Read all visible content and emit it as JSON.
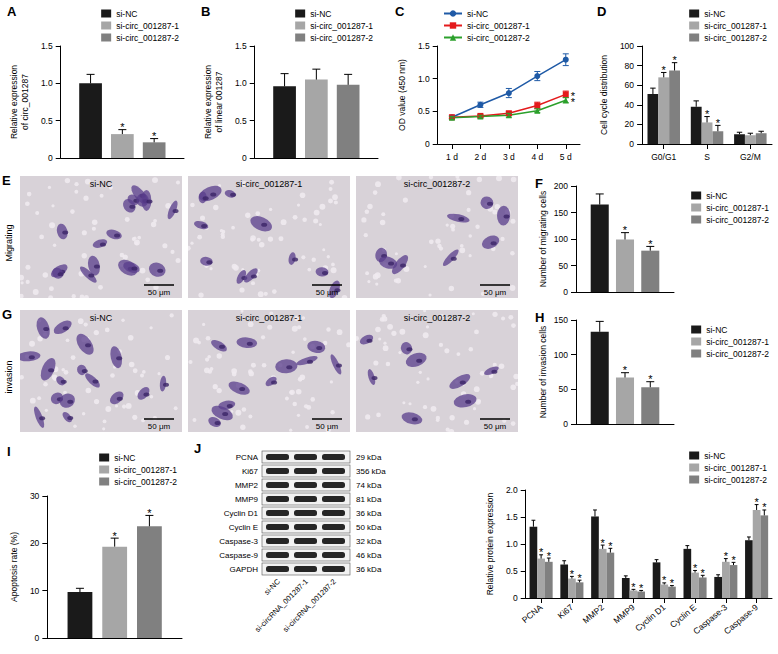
{
  "chart_data": [
    {
      "type": "bar",
      "title": "A",
      "categories": [
        null
      ],
      "ylabel": "Relative expression\nof circ_001287",
      "ylim": [
        0,
        1.5
      ],
      "yticks": [
        0,
        0.5,
        {
          "value": 1,
          "label": "1.0"
        },
        1.5
      ],
      "grid": false,
      "legend": "upper right",
      "tick_labels": "y",
      "series": [
        {
          "name": "si-NC",
          "color": "#1a1a1a",
          "values": [
            1.0
          ],
          "errors": [
            0.12
          ],
          "significance": [
            null
          ]
        },
        {
          "name": "si-circ_001287-1",
          "color": "#a6a6a6",
          "values": [
            0.32
          ],
          "errors": [
            0.06
          ],
          "significance": [
            "*"
          ]
        },
        {
          "name": "si-circ_001287-2",
          "color": "#808080",
          "values": [
            0.21
          ],
          "errors": [
            0.05
          ],
          "significance": [
            "*"
          ]
        }
      ]
    },
    {
      "type": "bar",
      "title": "B",
      "categories": [
        null
      ],
      "ylabel": "Relative expression\nof linear 001287",
      "ylim": [
        0,
        1.5
      ],
      "yticks": [
        0,
        0.5,
        {
          "value": 1,
          "label": "1.0"
        },
        1.5
      ],
      "grid": false,
      "legend": "upper right",
      "tick_labels": "y",
      "series": [
        {
          "name": "si-NC",
          "color": "#1a1a1a",
          "values": [
            0.96
          ],
          "errors": [
            0.17
          ],
          "significance": [
            null
          ]
        },
        {
          "name": "si-circ_001287-1",
          "color": "#a6a6a6",
          "values": [
            1.05
          ],
          "errors": [
            0.14
          ],
          "significance": [
            null
          ]
        },
        {
          "name": "si-circ_001287-2",
          "color": "#808080",
          "values": [
            0.98
          ],
          "errors": [
            0.14
          ],
          "significance": [
            null
          ]
        }
      ]
    },
    {
      "type": "line",
      "title": "C",
      "categories": [
        "1 d",
        "2 d",
        "3 d",
        "4 d",
        "5 d"
      ],
      "ylabel": "OD value (450 nm)",
      "ylim": [
        0,
        1.5
      ],
      "yticks": [
        0,
        0.5,
        {
          "value": 1,
          "label": "1.0"
        },
        1.5
      ],
      "grid": false,
      "legend": "upper left",
      "series": [
        {
          "name": "si-NC",
          "color": "#1f5aa6",
          "marker": "circle",
          "values": [
            0.41,
            0.6,
            0.78,
            1.04,
            1.29
          ],
          "errors": [
            0.02,
            0.04,
            0.07,
            0.07,
            0.09
          ],
          "significance": [
            null,
            null,
            null,
            null,
            null
          ]
        },
        {
          "name": "si-circ_001287-1",
          "color": "#e41a1c",
          "marker": "square",
          "values": [
            0.41,
            0.43,
            0.47,
            0.59,
            0.76
          ],
          "errors": [
            0.02,
            0.02,
            0.03,
            0.05,
            0.05
          ],
          "significance": [
            null,
            null,
            null,
            null,
            "*"
          ]
        },
        {
          "name": "si-circ_001287-2",
          "color": "#2ca02c",
          "marker": "triangle",
          "values": [
            0.4,
            0.42,
            0.44,
            0.51,
            0.67
          ],
          "errors": [
            0.02,
            0.02,
            0.03,
            0.03,
            0.04
          ],
          "significance": [
            null,
            null,
            null,
            null,
            "*"
          ]
        }
      ]
    },
    {
      "type": "bar",
      "title": "D",
      "categories": [
        "G0/G1",
        "S",
        "G2/M"
      ],
      "ylabel": "Cell cycle distribution",
      "ylim": [
        0,
        100
      ],
      "yticks": [
        0,
        20,
        40,
        60,
        80,
        100
      ],
      "grid": false,
      "legend": "upper right",
      "series": [
        {
          "name": "si-NC",
          "color": "#1a1a1a",
          "values": [
            51,
            38,
            10
          ],
          "errors": [
            6,
            6,
            2
          ],
          "significance": [
            null,
            null,
            null
          ]
        },
        {
          "name": "si-circ_001287-1",
          "color": "#a6a6a6",
          "values": [
            68,
            22,
            9
          ],
          "errors": [
            5,
            6,
            2
          ],
          "significance": [
            "*",
            "*",
            null
          ]
        },
        {
          "name": "si-circ_001287-2",
          "color": "#808080",
          "values": [
            75,
            13,
            11
          ],
          "errors": [
            8,
            6,
            2
          ],
          "significance": [
            "*",
            "*",
            null
          ]
        }
      ]
    },
    {
      "type": "bar",
      "title": "F",
      "categories": [
        null
      ],
      "ylabel": "Number of migrating cells",
      "ylim": [
        0,
        200
      ],
      "yticks": [
        0,
        50,
        100,
        150,
        200
      ],
      "grid": false,
      "legend": "upper right",
      "tick_labels": "y",
      "series": [
        {
          "name": "si-NC",
          "color": "#1a1a1a",
          "values": [
            165
          ],
          "errors": [
            20
          ],
          "significance": [
            null
          ]
        },
        {
          "name": "si-circ_001287-1",
          "color": "#a6a6a6",
          "values": [
            99
          ],
          "errors": [
            13
          ],
          "significance": [
            "*"
          ]
        },
        {
          "name": "si-circ_001287-2",
          "color": "#808080",
          "values": [
            78
          ],
          "errors": [
            8
          ],
          "significance": [
            "*"
          ]
        }
      ]
    },
    {
      "type": "bar",
      "title": "H",
      "categories": [
        null
      ],
      "ylabel": "Number of invasion cells",
      "ylim": [
        0,
        150
      ],
      "yticks": [
        0,
        50,
        100,
        150
      ],
      "grid": false,
      "legend": "upper right",
      "tick_labels": "y",
      "series": [
        {
          "name": "si-NC",
          "color": "#1a1a1a",
          "values": [
            133
          ],
          "errors": [
            15
          ],
          "significance": [
            null
          ]
        },
        {
          "name": "si-circ_001287-1",
          "color": "#a6a6a6",
          "values": [
            67
          ],
          "errors": [
            7
          ],
          "significance": [
            "*"
          ]
        },
        {
          "name": "si-circ_001287-2",
          "color": "#808080",
          "values": [
            53
          ],
          "errors": [
            8
          ],
          "significance": [
            "*"
          ]
        }
      ]
    },
    {
      "type": "bar",
      "title": "I",
      "categories": [
        null
      ],
      "ylabel": "Apoptosis rate (%)",
      "ylim": [
        0,
        30
      ],
      "yticks": [
        0,
        10,
        20,
        30
      ],
      "grid": false,
      "legend": "upper right",
      "tick_labels": "y",
      "series": [
        {
          "name": "si-NC",
          "color": "#1a1a1a",
          "values": [
            9.7
          ],
          "errors": [
            0.8
          ],
          "significance": [
            null
          ]
        },
        {
          "name": "si-circ_001287-1",
          "color": "#a6a6a6",
          "values": [
            19.3
          ],
          "errors": [
            1.8
          ],
          "significance": [
            "*"
          ]
        },
        {
          "name": "si-circ_001287-2",
          "color": "#808080",
          "values": [
            23.6
          ],
          "errors": [
            2.3
          ],
          "significance": [
            "*"
          ]
        }
      ]
    },
    {
      "type": "bar",
      "categories": [
        "PCNA",
        "Ki67",
        "MMP2",
        "MMP9",
        "Cyclin D1",
        "Cyclin E",
        "Caspase-3",
        "Caspase-9"
      ],
      "ylabel": "Relative protein expression",
      "ylim": [
        0,
        2
      ],
      "yticks": [
        0,
        0.5,
        {
          "value": 1,
          "label": "1.0"
        },
        1.5,
        {
          "value": 2,
          "label": "2.0"
        }
      ],
      "grid": false,
      "legend": "upper right",
      "series": [
        {
          "name": "si-NC",
          "color": "#1a1a1a",
          "values": [
            1.32,
            0.62,
            1.51,
            0.37,
            0.66,
            0.91,
            0.39,
            1.07
          ],
          "errors": [
            0.12,
            0.07,
            0.12,
            0.04,
            0.05,
            0.06,
            0.04,
            0.06
          ],
          "significance": [
            null,
            null,
            null,
            null,
            null,
            null,
            null,
            null
          ]
        },
        {
          "name": "si-circ_001287-1",
          "color": "#a6a6a6",
          "values": [
            0.73,
            0.36,
            0.91,
            0.14,
            0.25,
            0.47,
            0.67,
            1.63
          ],
          "errors": [
            0.07,
            0.04,
            0.07,
            0.02,
            0.03,
            0.04,
            0.06,
            0.1
          ],
          "significance": [
            "*",
            "*",
            "*",
            "*",
            "*",
            "*",
            "*",
            "*"
          ]
        },
        {
          "name": "si-circ_001287-2",
          "color": "#808080",
          "values": [
            0.67,
            0.29,
            0.84,
            0.12,
            0.21,
            0.38,
            0.61,
            1.53
          ],
          "errors": [
            0.07,
            0.04,
            0.08,
            0.02,
            0.02,
            0.04,
            0.05,
            0.1
          ],
          "significance": [
            "*",
            "*",
            "*",
            "*",
            "*",
            "*",
            "*",
            "*"
          ]
        }
      ]
    }
  ],
  "micrographs": [
    {
      "panel": "E",
      "row_label": "Migrating",
      "images": [
        "si-NC",
        "si-circ_001287-1",
        "si-circ_001287-2"
      ],
      "scale_bar": "50 μm"
    },
    {
      "panel": "G",
      "row_label": "invasion",
      "images": [
        "si-NC",
        "si-circ_001287-1",
        "si-circ_001287-2"
      ],
      "scale_bar": "50 μm"
    }
  ],
  "blot": {
    "panel": "J",
    "proteins": [
      {
        "name": "PCNA",
        "size": "29 kDa"
      },
      {
        "name": "Ki67",
        "size": "356 kDa"
      },
      {
        "name": "MMP2",
        "size": "74 kDa"
      },
      {
        "name": "MMP9",
        "size": "81 kDa"
      },
      {
        "name": "Cyclin D1",
        "size": "36 kDa"
      },
      {
        "name": "Cyclin E",
        "size": "50 kDa"
      },
      {
        "name": "Caspase-3",
        "size": "32 kDa"
      },
      {
        "name": "Caspase-9",
        "size": "46 kDa"
      },
      {
        "name": "GAPDH",
        "size": "36 kDa"
      }
    ],
    "lanes": [
      "si-NC",
      "si-circRNA_001287-1",
      "si-circRNA_001287-2"
    ]
  }
}
